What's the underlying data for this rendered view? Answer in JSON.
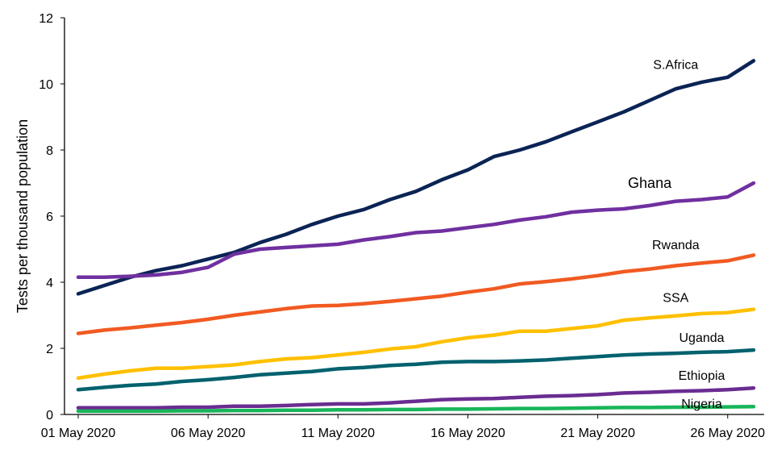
{
  "chart_data": {
    "type": "line",
    "title": "",
    "xlabel": "",
    "ylabel": "Tests per thousand population",
    "ylim": [
      0,
      12
    ],
    "yticks": [
      0,
      2,
      4,
      6,
      8,
      10,
      12
    ],
    "xticks": [
      "01 May 2020",
      "06 May 2020",
      "11 May 2020",
      "16 May 2020",
      "21 May 2020",
      "26 May 2020"
    ],
    "x": [
      "01 May 2020",
      "02 May 2020",
      "03 May 2020",
      "04 May 2020",
      "05 May 2020",
      "06 May 2020",
      "07 May 2020",
      "08 May 2020",
      "09 May 2020",
      "10 May 2020",
      "11 May 2020",
      "12 May 2020",
      "13 May 2020",
      "14 May 2020",
      "15 May 2020",
      "16 May 2020",
      "17 May 2020",
      "18 May 2020",
      "19 May 2020",
      "20 May 2020",
      "21 May 2020",
      "22 May 2020",
      "23 May 2020",
      "24 May 2020",
      "25 May 2020",
      "26 May 2020",
      "27 May 2020"
    ],
    "grid": false,
    "legend": "none",
    "series": [
      {
        "name": "S.Africa",
        "color": "#0b2455",
        "values": [
          3.65,
          3.9,
          4.15,
          4.35,
          4.5,
          4.7,
          4.9,
          5.2,
          5.45,
          5.75,
          6.0,
          6.2,
          6.5,
          6.75,
          7.1,
          7.4,
          7.8,
          8.0,
          8.25,
          8.55,
          8.85,
          9.15,
          9.5,
          9.85,
          10.05,
          10.2,
          10.7
        ]
      },
      {
        "name": "Ghana",
        "color": "#7030a0",
        "values": [
          4.15,
          4.15,
          4.18,
          4.22,
          4.3,
          4.45,
          4.85,
          5.0,
          5.05,
          5.1,
          5.15,
          5.28,
          5.38,
          5.5,
          5.55,
          5.65,
          5.75,
          5.88,
          5.98,
          6.12,
          6.18,
          6.22,
          6.32,
          6.45,
          6.5,
          6.58,
          7.0
        ]
      },
      {
        "name": "Rwanda",
        "color": "#f15a22",
        "values": [
          2.45,
          2.55,
          2.62,
          2.7,
          2.78,
          2.88,
          3.0,
          3.1,
          3.2,
          3.28,
          3.3,
          3.35,
          3.42,
          3.5,
          3.58,
          3.7,
          3.8,
          3.95,
          4.02,
          4.1,
          4.2,
          4.32,
          4.4,
          4.5,
          4.58,
          4.65,
          4.82
        ]
      },
      {
        "name": "SSA",
        "color": "#ffc000",
        "values": [
          1.1,
          1.22,
          1.32,
          1.4,
          1.4,
          1.45,
          1.5,
          1.6,
          1.68,
          1.72,
          1.8,
          1.88,
          1.98,
          2.05,
          2.2,
          2.32,
          2.4,
          2.52,
          2.52,
          2.6,
          2.68,
          2.85,
          2.92,
          2.98,
          3.05,
          3.08,
          3.18
        ]
      },
      {
        "name": "Uganda",
        "color": "#00616e",
        "values": [
          0.75,
          0.82,
          0.88,
          0.92,
          1.0,
          1.05,
          1.12,
          1.2,
          1.25,
          1.3,
          1.38,
          1.42,
          1.48,
          1.52,
          1.58,
          1.6,
          1.6,
          1.62,
          1.65,
          1.7,
          1.75,
          1.8,
          1.83,
          1.85,
          1.88,
          1.9,
          1.95
        ]
      },
      {
        "name": "Ethiopia",
        "color": "#6a2c91",
        "values": [
          0.2,
          0.2,
          0.2,
          0.2,
          0.22,
          0.22,
          0.25,
          0.25,
          0.27,
          0.3,
          0.32,
          0.32,
          0.35,
          0.4,
          0.45,
          0.47,
          0.48,
          0.52,
          0.55,
          0.57,
          0.6,
          0.65,
          0.67,
          0.7,
          0.72,
          0.75,
          0.8
        ]
      },
      {
        "name": "Nigeria",
        "color": "#19b55a",
        "values": [
          0.1,
          0.1,
          0.1,
          0.1,
          0.11,
          0.11,
          0.12,
          0.12,
          0.13,
          0.13,
          0.14,
          0.14,
          0.15,
          0.15,
          0.16,
          0.16,
          0.17,
          0.18,
          0.18,
          0.19,
          0.2,
          0.21,
          0.21,
          0.22,
          0.22,
          0.23,
          0.24
        ]
      }
    ],
    "series_labels": [
      {
        "text": "S.Africa",
        "x": "24 May 2020",
        "y": 10.45,
        "size": "normal"
      },
      {
        "text": "Ghana",
        "x": "23 May 2020",
        "y": 6.85,
        "size": "big"
      },
      {
        "text": "Rwanda",
        "x": "24 May 2020",
        "y": 5.0,
        "size": "normal"
      },
      {
        "text": "SSA",
        "x": "24 May 2020",
        "y": 3.4,
        "size": "normal"
      },
      {
        "text": "Uganda",
        "x": "25 May 2020",
        "y": 2.2,
        "size": "normal"
      },
      {
        "text": "Ethiopia",
        "x": "25 May 2020",
        "y": 1.05,
        "size": "normal"
      },
      {
        "text": "Nigeria",
        "x": "25 May 2020",
        "y": 0.2,
        "size": "normal"
      }
    ]
  }
}
